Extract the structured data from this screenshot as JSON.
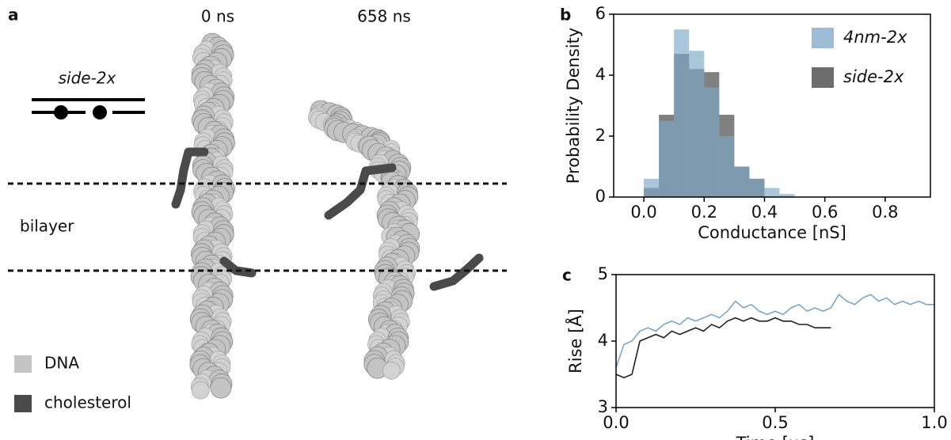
{
  "panel_a": {
    "label": "a",
    "time_labels": [
      "0 ns",
      "658 ns"
    ],
    "schematic_label": "side-2x",
    "region_label": "bilayer",
    "legend": [
      {
        "name": "DNA",
        "color": "#c4c4c4"
      },
      {
        "name": "cholesterol",
        "color": "#4a4a4a"
      }
    ]
  },
  "chart_data": [
    {
      "type": "histogram",
      "panel_label": "b",
      "xlabel": "Conductance [nS]",
      "ylabel": "Probability Density",
      "bins": [
        0,
        0.05,
        0.1,
        0.15,
        0.2,
        0.25,
        0.3,
        0.35,
        0.4,
        0.45,
        0.5
      ],
      "series": [
        {
          "name": "side-2x",
          "color": "#3c3c3c",
          "values": [
            0.3,
            2.7,
            4.7,
            4.2,
            4.1,
            2.7,
            1.0,
            0.6,
            0,
            0
          ]
        },
        {
          "name": "4nm-2x",
          "color": "#7ba7c7",
          "values": [
            0.6,
            2.5,
            5.5,
            4.8,
            3.6,
            2.0,
            1.0,
            0.6,
            0.3,
            0.1
          ]
        }
      ],
      "legend_order": [
        "4nm-2x",
        "side-2x"
      ],
      "xlim": [
        -0.1,
        0.95
      ],
      "ylim": [
        0,
        6
      ],
      "xticks": [
        {
          "value": 0,
          "label": "0.0"
        },
        {
          "value": 0.2,
          "label": "0.2"
        },
        {
          "value": 0.4,
          "label": "0.4"
        },
        {
          "value": 0.6,
          "label": "0.6"
        },
        {
          "value": 0.8,
          "label": "0.8"
        }
      ],
      "yticks": [
        0,
        2,
        4,
        6
      ]
    },
    {
      "type": "line",
      "panel_label": "c",
      "xlabel": "Time [μs]",
      "ylabel": "Rise [Å]",
      "x": [
        0,
        0.025,
        0.05,
        0.075,
        0.1,
        0.125,
        0.15,
        0.175,
        0.2,
        0.225,
        0.25,
        0.275,
        0.3,
        0.325,
        0.35,
        0.375,
        0.4,
        0.425,
        0.45,
        0.475,
        0.5,
        0.525,
        0.55,
        0.575,
        0.6,
        0.625,
        0.65,
        0.675,
        0.7,
        0.725,
        0.75,
        0.775,
        0.8,
        0.825,
        0.85,
        0.875,
        0.9,
        0.925,
        0.95,
        0.975,
        1
      ],
      "series": [
        {
          "color": "#222222",
          "values": [
            3.5,
            3.45,
            3.5,
            4.0,
            4.05,
            4.1,
            4.05,
            4.15,
            4.1,
            4.15,
            4.2,
            4.15,
            4.25,
            4.2,
            4.3,
            4.35,
            4.3,
            4.35,
            4.3,
            4.3,
            4.35,
            4.3,
            4.3,
            4.25,
            4.25,
            4.2,
            4.2,
            4.2,
            null,
            null,
            null,
            null,
            null,
            null,
            null,
            null,
            null,
            null,
            null,
            null,
            null
          ]
        },
        {
          "color": "#7ba7c7",
          "values": [
            3.6,
            3.95,
            4.0,
            4.15,
            4.2,
            4.15,
            4.25,
            4.3,
            4.25,
            4.35,
            4.3,
            4.35,
            4.4,
            4.35,
            4.45,
            4.6,
            4.5,
            4.55,
            4.45,
            4.4,
            4.45,
            4.4,
            4.5,
            4.55,
            4.45,
            4.5,
            4.45,
            4.5,
            4.7,
            4.6,
            4.55,
            4.65,
            4.7,
            4.6,
            4.65,
            4.55,
            4.6,
            4.55,
            4.6,
            4.55,
            4.55
          ]
        }
      ],
      "xlim": [
        0,
        1
      ],
      "ylim": [
        3,
        5
      ],
      "xticks": [
        {
          "value": 0,
          "label": "0.0"
        },
        {
          "value": 0.5,
          "label": "0.5"
        },
        {
          "value": 1,
          "label": "1.0"
        }
      ],
      "yticks": [
        3,
        4,
        5
      ]
    }
  ]
}
